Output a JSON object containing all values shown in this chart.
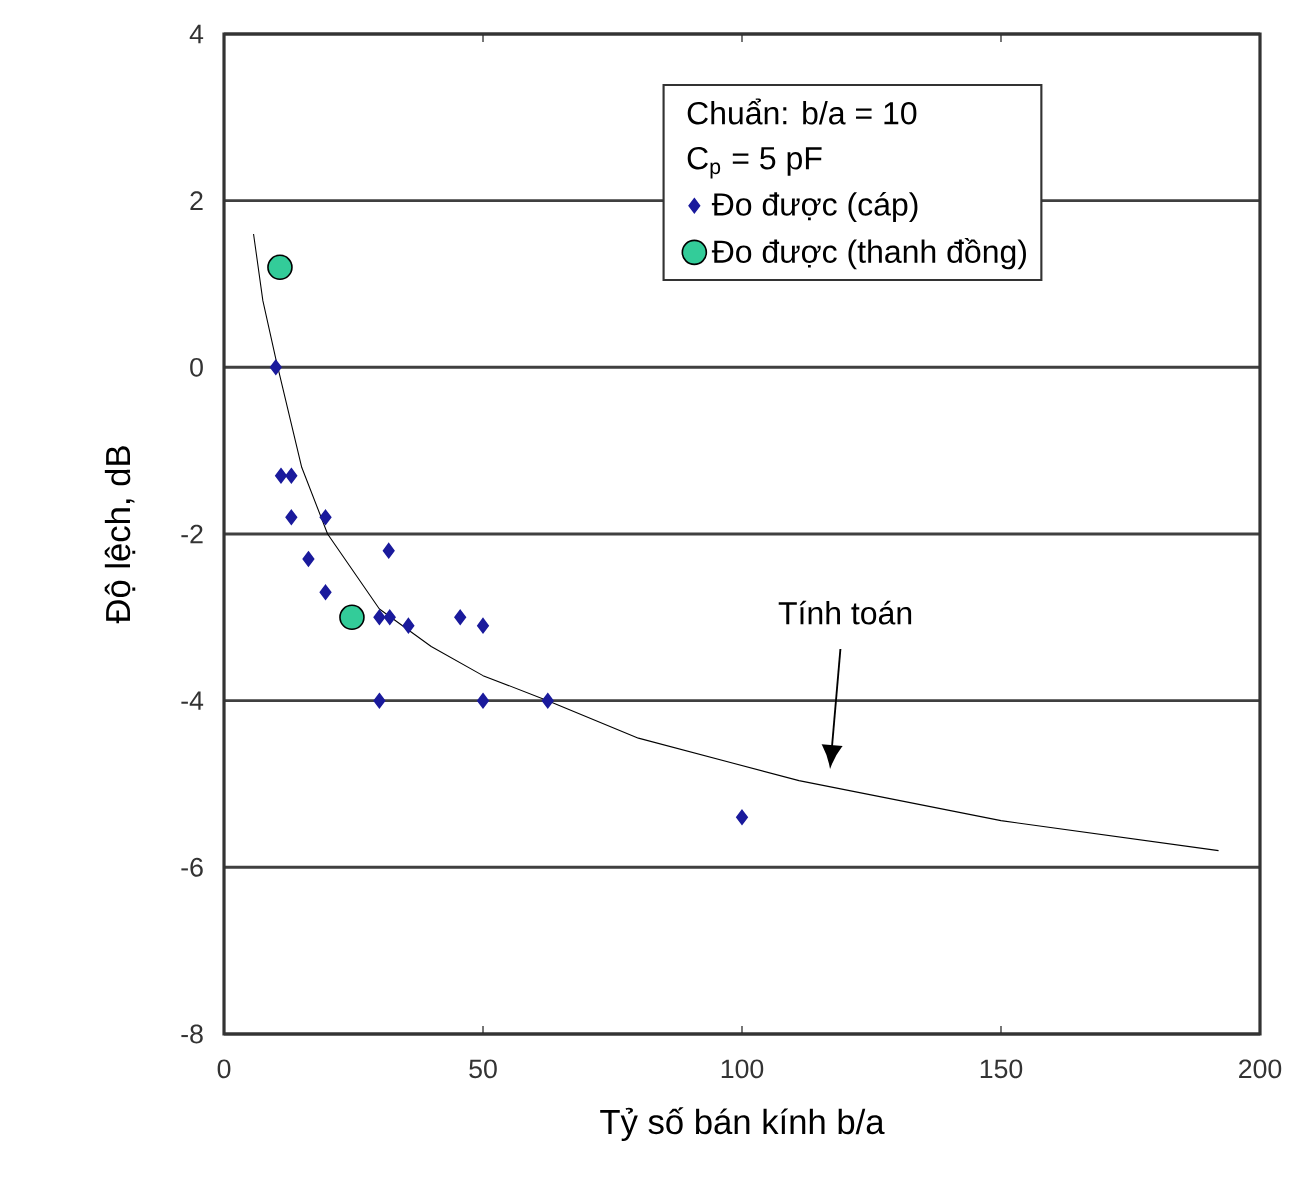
{
  "chart_data": {
    "type": "scatter",
    "xlabel": "Tỷ số bán kính b/a",
    "ylabel": "Độ lệch, dB",
    "legend_title": "Chuẩn: b/a = 10",
    "annotations": [
      "C$_{p}$ = 5 pF",
      "Tính toán"
    ],
    "xlim": [
      0,
      200
    ],
    "xticks": [
      0,
      50,
      100,
      150,
      200
    ],
    "ylim": [
      -8,
      4
    ],
    "yticks": [
      -8,
      -6,
      -4,
      -2,
      0,
      2,
      4
    ],
    "grid": "y",
    "legend": "top right",
    "series": [
      {
        "name": "Đo được (cáp)",
        "color": "#1a1a9c",
        "marker": "diamond",
        "x": [
          10,
          11,
          13,
          13,
          19.6,
          16.3,
          31.8,
          19.6,
          30,
          32,
          35.6,
          45.6,
          50,
          30,
          50,
          62.5,
          100
        ],
        "values": [
          0,
          -1.3,
          -1.3,
          -1.8,
          -1.8,
          -2.3,
          -2.2,
          -2.7,
          -3,
          -3,
          -3.1,
          -3,
          -3.1,
          -4,
          -4,
          -4,
          -5.4
        ]
      },
      {
        "name": "Đo được (thanh đồng)",
        "color": "#33cc99",
        "marker": "circle",
        "x": [
          10.8,
          24.7
        ],
        "values": [
          1.2,
          -3
        ]
      },
      {
        "type": "line",
        "color": "#000000",
        "marker": "none",
        "x": [
          5.7,
          7.5,
          10,
          15,
          20,
          30,
          40,
          50,
          62.5,
          80,
          111,
          150,
          192
        ],
        "values": [
          1.6,
          0.8,
          0.1,
          -1.2,
          -2,
          -2.9,
          -3.35,
          -3.7,
          -4,
          -4.45,
          -4.96,
          -5.44,
          -5.8
        ]
      }
    ]
  }
}
